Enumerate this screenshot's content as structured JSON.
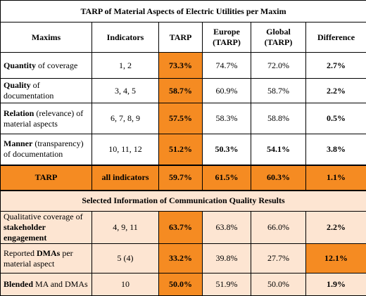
{
  "title": "TARP of Material Aspects of Electric Utilities per Maxim",
  "headers": [
    "Maxims",
    "Indicators",
    "TARP",
    "Europe (TARP)",
    "Global (TARP)",
    "Difference"
  ],
  "rows": [
    {
      "maxim": [
        "Quantity",
        " of coverage"
      ],
      "cells": [
        "1, 2",
        "73.3%",
        "74.7%",
        "72.0%",
        "2.7%"
      ]
    },
    {
      "maxim": [
        "Quality",
        " of documentation"
      ],
      "cells": [
        "3, 4, 5",
        "58.7%",
        "60.9%",
        "58.7%",
        "2.2%"
      ]
    },
    {
      "maxim": [
        "Relation",
        " (relevance) of material aspects"
      ],
      "cells": [
        "6, 7, 8, 9",
        "57.5%",
        "58.3%",
        "58.8%",
        "0.5%"
      ]
    },
    {
      "maxim": [
        "Manner",
        " (transparency) of documentation"
      ],
      "cells": [
        "10, 11, 12",
        "51.2%",
        "50.3%",
        "54.1%",
        "3.8%"
      ]
    }
  ],
  "total": [
    "TARP",
    "all indicators",
    "59.7%",
    "61.5%",
    "60.3%",
    "1.1%"
  ],
  "section_title": "Selected Information of Communication Quality Results",
  "section_rows": [
    {
      "item": [
        "Qualitative coverage of ",
        "stakeholder engagement"
      ],
      "cells": [
        "4, 9, 11",
        "63.7%",
        "63.8%",
        "66.0%",
        "2.2%"
      ]
    },
    {
      "item": [
        "Reported ",
        "DMAs",
        " per material aspect"
      ],
      "cells": [
        "5 (4)",
        "33.2%",
        "39.8%",
        "27.7%",
        "12.1%"
      ]
    },
    {
      "item": [
        "Blended",
        " MA and DMAs"
      ],
      "cells": [
        "10",
        "50.0%",
        "51.9%",
        "50.0%",
        "1.9%"
      ]
    }
  ]
}
